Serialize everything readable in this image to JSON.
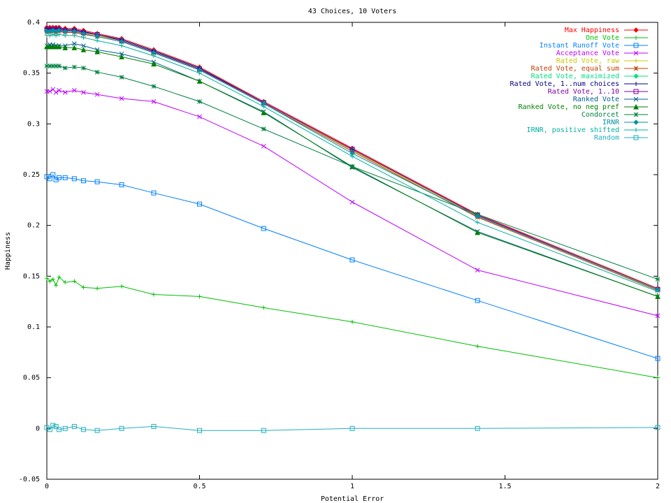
{
  "chart_data": {
    "type": "line",
    "title": "43 Choices, 10 Voters",
    "xlabel": "Potential Error",
    "ylabel": "Happiness",
    "xlim": [
      0,
      2
    ],
    "ylim": [
      -0.05,
      0.4
    ],
    "grid": false,
    "legend_position": "top-right",
    "x_ticks": [
      0,
      0.5,
      1,
      1.5,
      2
    ],
    "x_tick_labels": [
      "0",
      "0.5",
      "1",
      "1.5",
      "2"
    ],
    "y_ticks": [
      -0.05,
      0,
      0.05,
      0.1,
      0.15,
      0.2,
      0.25,
      0.3,
      0.35,
      0.4
    ],
    "y_tick_labels": [
      "-0.05",
      "0",
      "0.05",
      "0.1",
      "0.15",
      "0.2",
      "0.25",
      "0.3",
      "0.35",
      "0.4"
    ],
    "x": [
      0,
      0.01,
      0.02,
      0.03,
      0.04,
      0.06,
      0.09,
      0.12,
      0.165,
      0.245,
      0.35,
      0.5,
      0.71,
      1.0,
      1.41,
      2.0
    ],
    "series": [
      {
        "name": "Max Happiness",
        "color": "#ff0000",
        "marker": "diamond",
        "values": [
          0.395,
          0.395,
          0.395,
          0.395,
          0.395,
          0.394,
          0.394,
          0.392,
          0.389,
          0.384,
          0.373,
          0.356,
          0.322,
          0.276,
          0.211,
          0.138
        ]
      },
      {
        "name": "One Vote",
        "color": "#00c000",
        "marker": "plus",
        "values": [
          0.148,
          0.145,
          0.147,
          0.141,
          0.149,
          0.144,
          0.145,
          0.139,
          0.138,
          0.14,
          0.132,
          0.13,
          0.119,
          0.105,
          0.081,
          0.05
        ]
      },
      {
        "name": "Instant Runoff Vote",
        "color": "#0080ff",
        "marker": "square",
        "values": [
          0.248,
          0.246,
          0.25,
          0.245,
          0.247,
          0.247,
          0.246,
          0.244,
          0.243,
          0.24,
          0.232,
          0.221,
          0.197,
          0.166,
          0.126,
          0.069
        ]
      },
      {
        "name": "Acceptance Vote",
        "color": "#c000ff",
        "marker": "x",
        "values": [
          0.332,
          0.332,
          0.334,
          0.331,
          0.333,
          0.331,
          0.333,
          0.331,
          0.329,
          0.325,
          0.322,
          0.307,
          0.278,
          0.223,
          0.156,
          0.111
        ]
      },
      {
        "name": "Rated Vote, raw",
        "color": "#c8c800",
        "marker": "plus",
        "values": [
          0.392,
          0.392,
          0.392,
          0.392,
          0.392,
          0.392,
          0.391,
          0.39,
          0.387,
          0.382,
          0.371,
          0.354,
          0.321,
          0.274,
          0.209,
          0.137
        ]
      },
      {
        "name": "Rated Vote, equal sum",
        "color": "#c04000",
        "marker": "star",
        "values": [
          0.39,
          0.391,
          0.391,
          0.39,
          0.391,
          0.39,
          0.39,
          0.388,
          0.386,
          0.381,
          0.37,
          0.353,
          0.32,
          0.273,
          0.208,
          0.136
        ]
      },
      {
        "name": "Rated Vote, maximized",
        "color": "#00e080",
        "marker": "diamond",
        "values": [
          0.393,
          0.393,
          0.393,
          0.392,
          0.393,
          0.392,
          0.392,
          0.39,
          0.388,
          0.383,
          0.372,
          0.355,
          0.321,
          0.275,
          0.21,
          0.137
        ]
      },
      {
        "name": "Rated Vote, 1..num choices",
        "color": "#000080",
        "marker": "plus",
        "values": [
          0.394,
          0.394,
          0.394,
          0.394,
          0.394,
          0.393,
          0.393,
          0.391,
          0.388,
          0.383,
          0.372,
          0.355,
          0.321,
          0.275,
          0.21,
          0.137
        ]
      },
      {
        "name": "Rated Vote, 1..10",
        "color": "#8000a0",
        "marker": "square",
        "values": [
          0.393,
          0.393,
          0.393,
          0.393,
          0.393,
          0.392,
          0.392,
          0.39,
          0.388,
          0.382,
          0.371,
          0.354,
          0.321,
          0.275,
          0.21,
          0.137
        ]
      },
      {
        "name": "Ranked Vote",
        "color": "#006090",
        "marker": "x",
        "values": [
          0.377,
          0.378,
          0.378,
          0.377,
          0.377,
          0.377,
          0.379,
          0.377,
          0.373,
          0.369,
          0.361,
          0.342,
          0.312,
          0.257,
          0.194,
          0.13
        ]
      },
      {
        "name": "Ranked Vote, no neg pref",
        "color": "#008000",
        "marker": "triangle",
        "values": [
          0.376,
          0.376,
          0.376,
          0.376,
          0.376,
          0.375,
          0.375,
          0.373,
          0.371,
          0.366,
          0.359,
          0.342,
          0.311,
          0.258,
          0.193,
          0.13
        ]
      },
      {
        "name": "Condorcet",
        "color": "#008040",
        "marker": "star",
        "values": [
          0.357,
          0.357,
          0.357,
          0.357,
          0.357,
          0.355,
          0.356,
          0.355,
          0.351,
          0.346,
          0.337,
          0.322,
          0.295,
          0.258,
          0.211,
          0.147
        ]
      },
      {
        "name": "IRNR",
        "color": "#0090a0",
        "marker": "diamond",
        "values": [
          0.391,
          0.391,
          0.392,
          0.391,
          0.392,
          0.391,
          0.391,
          0.389,
          0.386,
          0.381,
          0.37,
          0.353,
          0.32,
          0.271,
          0.209,
          0.137
        ]
      },
      {
        "name": "IRNR, positive shifted",
        "color": "#00b0a0",
        "marker": "plus",
        "values": [
          0.387,
          0.387,
          0.388,
          0.387,
          0.388,
          0.387,
          0.387,
          0.385,
          0.382,
          0.377,
          0.367,
          0.35,
          0.317,
          0.268,
          0.203,
          0.135
        ]
      },
      {
        "name": "Random",
        "color": "#20b0c0",
        "marker": "square",
        "values": [
          0.001,
          -0.001,
          0.003,
          0.002,
          -0.001,
          0.0,
          0.002,
          -0.001,
          -0.002,
          0.0,
          0.002,
          -0.002,
          -0.002,
          0.0,
          0.0,
          0.001
        ]
      }
    ]
  }
}
